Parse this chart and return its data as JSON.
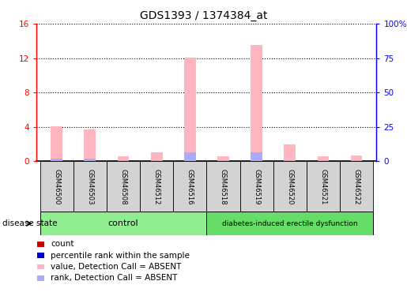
{
  "title": "GDS1393 / 1374384_at",
  "samples": [
    "GSM46500",
    "GSM46503",
    "GSM46508",
    "GSM46512",
    "GSM46516",
    "GSM46518",
    "GSM46519",
    "GSM46520",
    "GSM46521",
    "GSM46522"
  ],
  "pink_values": [
    4.1,
    3.7,
    0.6,
    1.0,
    12.1,
    0.6,
    13.5,
    2.0,
    0.6,
    0.7
  ],
  "blue_values": [
    0.3,
    0.3,
    0.1,
    0.1,
    1.0,
    0.1,
    1.0,
    0.1,
    0.1,
    0.1
  ],
  "pink_color": "#FFB6C1",
  "blue_color": "#AAAAFF",
  "ylim_left": [
    0,
    16
  ],
  "ylim_right": [
    0,
    100
  ],
  "yticks_left": [
    0,
    4,
    8,
    12,
    16
  ],
  "ytick_labels_left": [
    "0",
    "4",
    "8",
    "12",
    "16"
  ],
  "yticks_right": [
    0,
    25,
    50,
    75,
    100
  ],
  "ytick_labels_right": [
    "0",
    "25",
    "50",
    "75",
    "100%"
  ],
  "n_control": 5,
  "n_disease": 5,
  "control_label": "control",
  "disease_label": "diabetes-induced erectile dysfunction",
  "disease_state_label": "disease state",
  "control_color": "#90EE90",
  "disease_color": "#66DD66",
  "legend_items": [
    {
      "color": "#CC0000",
      "label": "count"
    },
    {
      "color": "#0000CC",
      "label": "percentile rank within the sample"
    },
    {
      "color": "#FFB6C1",
      "label": "value, Detection Call = ABSENT"
    },
    {
      "color": "#AAAAFF",
      "label": "rank, Detection Call = ABSENT"
    }
  ],
  "bar_width": 0.35,
  "title_fontsize": 10,
  "tick_fontsize": 7.5,
  "legend_fontsize": 7.5,
  "sample_fontsize": 6.0
}
